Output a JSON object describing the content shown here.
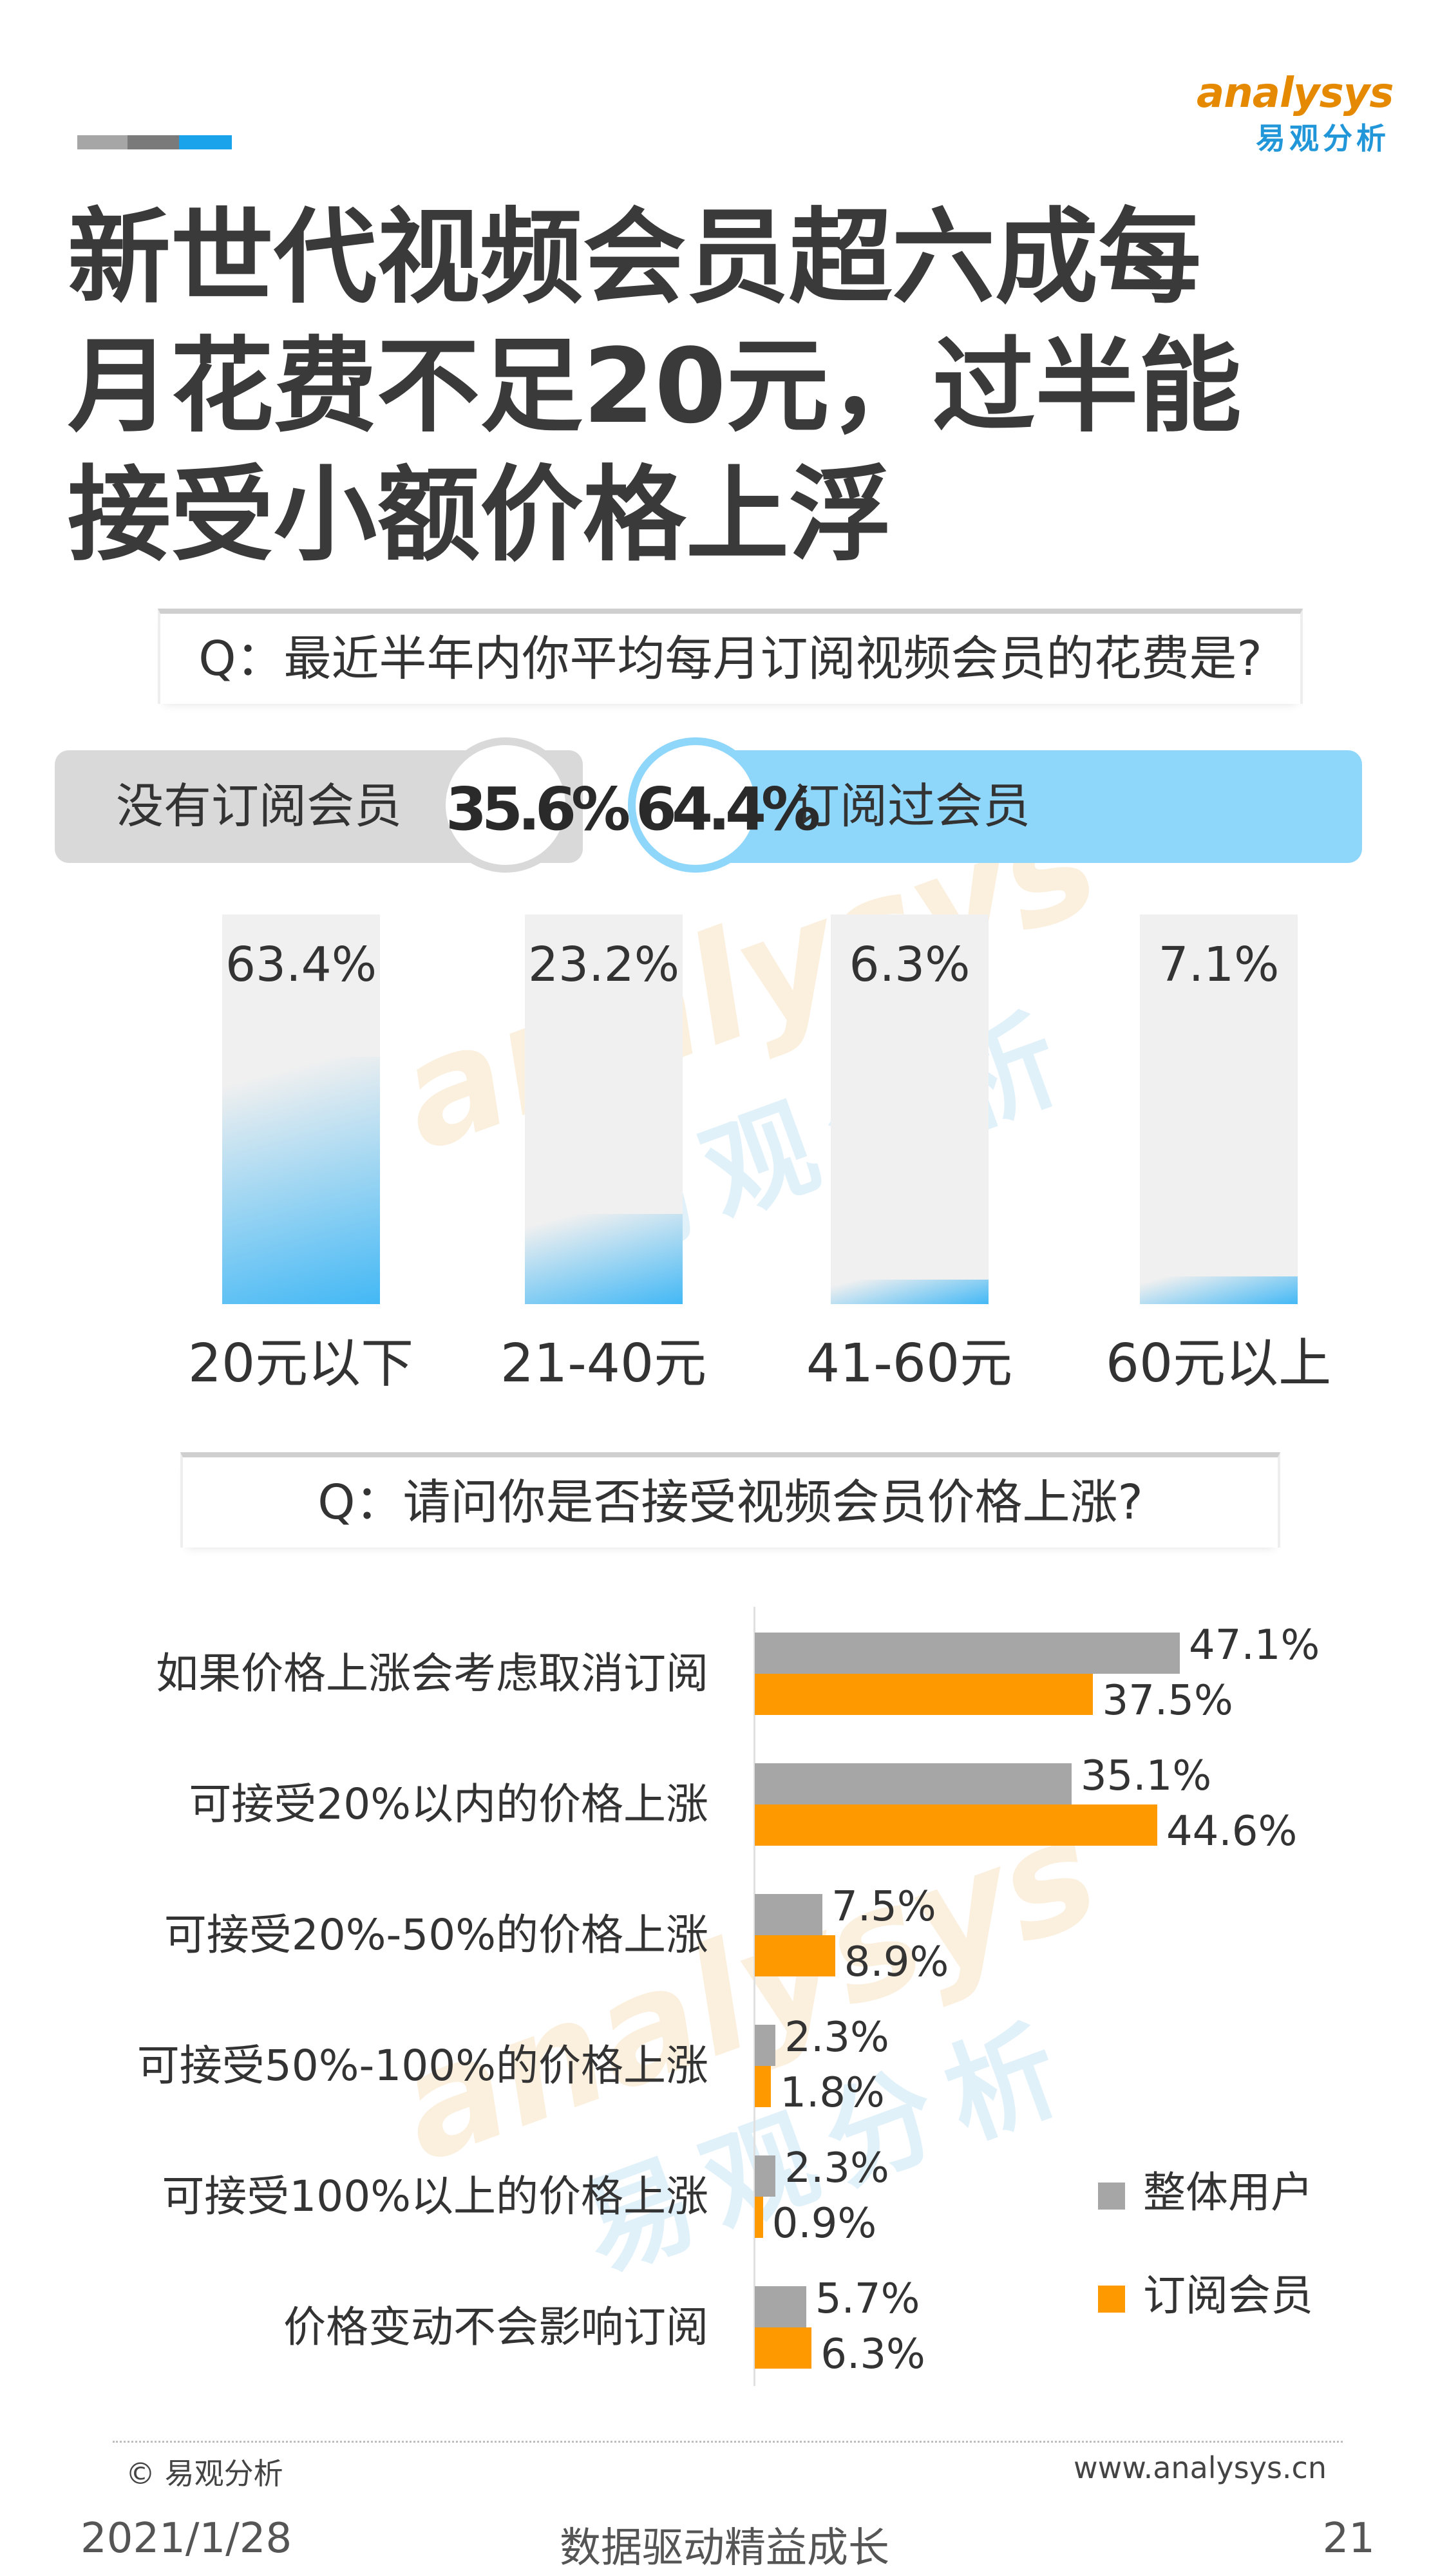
{
  "header": {
    "logo_en": "analysys",
    "logo_cn": "易观分析",
    "title_lines": [
      "新世代视频会员超六成每",
      "月花费不足20元，过半能",
      "接受小额价格上浮"
    ]
  },
  "colors": {
    "bar_dark_gray": "#9e9e9e",
    "bar_mid_gray": "#7a7a7a",
    "accent_blue": "#1aa3ea",
    "pill_gray": "#d9d9d9",
    "pill_blue": "#8fd6fb",
    "orange": "#ff9900",
    "gray": "#a6a6a6"
  },
  "section1": {
    "question": "Q：最近半年内你平均每月订阅视频会员的花费是?",
    "not_subscribed_label": "没有订阅会员",
    "not_subscribed_pct": "35.6%",
    "subscribed_pct": "64.4%",
    "subscribed_label": "订阅过会员"
  },
  "section2": {
    "question": "Q：请问你是否接受视频会员价格上涨?"
  },
  "chart_data": [
    {
      "type": "bar",
      "categories": [
        "20元以下",
        "21-40元",
        "41-60元",
        "60元以上"
      ],
      "values": [
        63.4,
        23.2,
        6.3,
        7.1
      ],
      "value_labels": [
        "63.4%",
        "23.2%",
        "6.3%",
        "7.1%"
      ],
      "ylim": [
        0,
        100
      ]
    },
    {
      "type": "bar",
      "orientation": "horizontal",
      "categories": [
        "如果价格上涨会考虑取消订阅",
        "可接受20%以内的价格上涨",
        "可接受20%-50%的价格上涨",
        "可接受50%-100%的价格上涨",
        "可接受100%以上的价格上涨",
        "价格变动不会影响订阅"
      ],
      "series": [
        {
          "name": "整体用户",
          "color": "#a6a6a6",
          "values": [
            47.1,
            35.1,
            7.5,
            2.3,
            2.3,
            5.7
          ],
          "labels": [
            "47.1%",
            "35.1%",
            "7.5%",
            "2.3%",
            "2.3%",
            "5.7%"
          ]
        },
        {
          "name": "订阅会员",
          "color": "#ff9900",
          "values": [
            37.5,
            44.6,
            8.9,
            1.8,
            0.9,
            6.3
          ],
          "labels": [
            "37.5%",
            "44.6%",
            "8.9%",
            "1.8%",
            "0.9%",
            "6.3%"
          ]
        }
      ],
      "legend": "right",
      "xlim": [
        0,
        50
      ]
    }
  ],
  "footer": {
    "copyright": "© 易观分析",
    "website": "www.analysys.cn",
    "date": "2021/1/28",
    "slogan": "数据驱动精益成长",
    "page": "21"
  }
}
